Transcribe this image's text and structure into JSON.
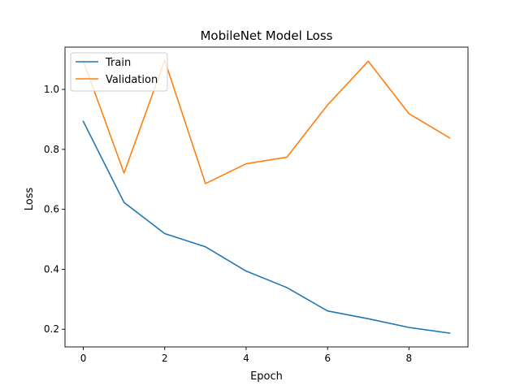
{
  "chart_data": {
    "type": "line",
    "title": "MobileNet Model Loss",
    "xlabel": "Epoch",
    "ylabel": "Loss",
    "x": [
      0,
      1,
      2,
      3,
      4,
      5,
      6,
      7,
      8,
      9
    ],
    "xlim": [
      -0.45,
      9.45
    ],
    "ylim": [
      0.141,
      1.141
    ],
    "xticks": [
      0,
      2,
      4,
      6,
      8
    ],
    "yticks": [
      0.2,
      0.4,
      0.6,
      0.8,
      1.0
    ],
    "xtick_labels": [
      "0",
      "2",
      "4",
      "6",
      "8"
    ],
    "ytick_labels": [
      "0.2",
      "0.4",
      "0.6",
      "0.8",
      "1.0"
    ],
    "grid": false,
    "legend_position": "top-left",
    "series": [
      {
        "name": "Train",
        "color": "#1f77b4",
        "values": [
          0.893,
          0.623,
          0.519,
          0.475,
          0.394,
          0.339,
          0.261,
          0.235,
          0.206,
          0.187
        ]
      },
      {
        "name": "Validation",
        "color": "#ff7f0e",
        "values": [
          1.095,
          0.721,
          1.097,
          0.686,
          0.752,
          0.774,
          0.948,
          1.094,
          0.919,
          0.838
        ]
      }
    ]
  }
}
